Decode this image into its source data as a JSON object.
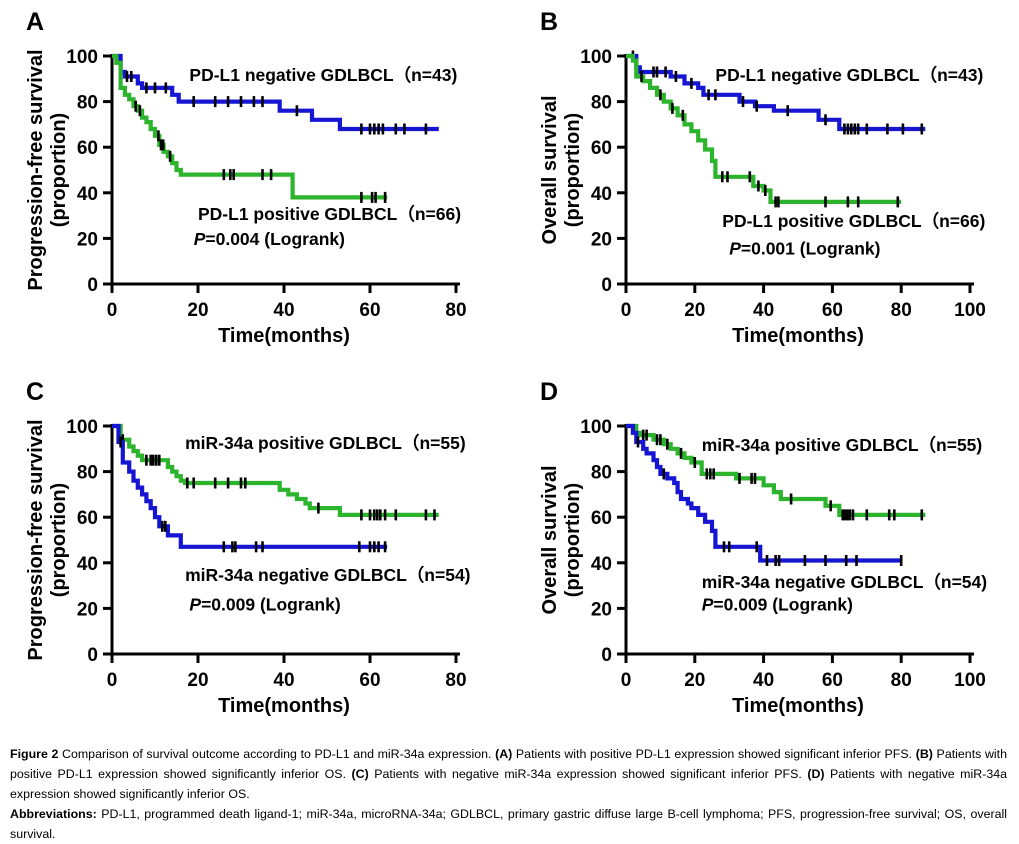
{
  "figure": {
    "panel_letters": [
      "A",
      "B",
      "C",
      "D"
    ],
    "colors": {
      "curve_blue": "#1515d2",
      "curve_green": "#2cb42c",
      "axis": "#000000",
      "background": "#ffffff"
    }
  },
  "chart_data": [
    {
      "panel_label": "A",
      "type": "line",
      "subtype": "kaplan_meier_step",
      "xlabel": "Time(months)",
      "ylabel_line1": "Progression-free survival",
      "ylabel_line2": "(proportion)",
      "xlim": [
        0,
        80
      ],
      "xticks": [
        0,
        20,
        40,
        60,
        80
      ],
      "ylim": [
        0,
        100
      ],
      "yticks": [
        0,
        20,
        40,
        60,
        80,
        100
      ],
      "grid": false,
      "p_label": "P=0.004 (Logrank)",
      "p_pos": {
        "x": 19,
        "y": 17
      },
      "series": [
        {
          "name": "PD-L1 negative GDLBCL（n=43)",
          "color": "#1515d2",
          "label_pos": {
            "x": 18,
            "y": 89
          },
          "points": [
            [
              0,
              100
            ],
            [
              2,
              93
            ],
            [
              3,
              91
            ],
            [
              6,
              88
            ],
            [
              7,
              86
            ],
            [
              14,
              83
            ],
            [
              15.5,
              80
            ],
            [
              39,
              76
            ],
            [
              46.5,
              72
            ],
            [
              53,
              68
            ],
            [
              76,
              68
            ]
          ],
          "censor_x": [
            3.5,
            4.5,
            8,
            10,
            12.5,
            19,
            24,
            27,
            30,
            33,
            35,
            43,
            58,
            60,
            61,
            62,
            63,
            66,
            68,
            73
          ]
        },
        {
          "name": "PD-L1 positive GDLBCL（n=66)",
          "color": "#2cb42c",
          "label_pos": {
            "x": 20,
            "y": 28
          },
          "points": [
            [
              0,
              100
            ],
            [
              1,
              97
            ],
            [
              2,
              86
            ],
            [
              3,
              83
            ],
            [
              4,
              81
            ],
            [
              5,
              78
            ],
            [
              6,
              76
            ],
            [
              7,
              73
            ],
            [
              8,
              71
            ],
            [
              9,
              68
            ],
            [
              10,
              65
            ],
            [
              11,
              61
            ],
            [
              12,
              58
            ],
            [
              13,
              56
            ],
            [
              14,
              53
            ],
            [
              15,
              50
            ],
            [
              16,
              48
            ],
            [
              42,
              38
            ],
            [
              64,
              38
            ]
          ],
          "censor_x": [
            5.5,
            6.5,
            10.8,
            11.4,
            11.9,
            13.5,
            26,
            27.5,
            28.3,
            35,
            37,
            58,
            60.5,
            61.3,
            63.5
          ]
        }
      ]
    },
    {
      "panel_label": "B",
      "type": "line",
      "subtype": "kaplan_meier_step",
      "xlabel": "Time(months)",
      "ylabel_line1": "Overall survival",
      "ylabel_line2": "(proportion)",
      "xlim": [
        0,
        100
      ],
      "xticks": [
        0,
        20,
        40,
        60,
        80,
        100
      ],
      "ylim": [
        0,
        100
      ],
      "yticks": [
        0,
        20,
        40,
        60,
        80,
        100
      ],
      "grid": false,
      "p_label": "P=0.001 (Logrank)",
      "p_pos": {
        "x": 30,
        "y": 13
      },
      "series": [
        {
          "name": "PD-L1 negative GDLBCL（n=43)",
          "color": "#1515d2",
          "label_pos": {
            "x": 26,
            "y": 89
          },
          "points": [
            [
              0,
              100
            ],
            [
              3,
              95
            ],
            [
              4,
              93
            ],
            [
              13,
              91
            ],
            [
              17,
              88
            ],
            [
              21,
              86
            ],
            [
              22.5,
              83
            ],
            [
              33,
              80
            ],
            [
              37.5,
              78
            ],
            [
              43,
              76
            ],
            [
              56,
              72
            ],
            [
              62,
              68
            ],
            [
              87,
              68
            ]
          ],
          "censor_x": [
            2,
            8,
            9,
            11.5,
            14.5,
            19,
            24,
            26,
            34,
            38,
            47,
            58,
            63.5,
            64.5,
            65.5,
            66.5,
            67.5,
            70,
            76,
            80.5,
            86
          ]
        },
        {
          "name": "PD-L1 positive GDLBCL（n=66)",
          "color": "#2cb42c",
          "label_pos": {
            "x": 28,
            "y": 25
          },
          "points": [
            [
              0,
              100
            ],
            [
              2,
              98
            ],
            [
              3,
              91
            ],
            [
              5,
              89
            ],
            [
              7,
              86
            ],
            [
              9,
              83
            ],
            [
              11,
              80
            ],
            [
              13,
              77
            ],
            [
              15,
              74
            ],
            [
              17,
              70
            ],
            [
              19,
              67
            ],
            [
              21,
              63
            ],
            [
              23,
              59
            ],
            [
              25,
              54
            ],
            [
              26,
              47
            ],
            [
              37,
              43
            ],
            [
              40,
              41
            ],
            [
              42,
              36
            ],
            [
              80,
              36
            ]
          ],
          "censor_x": [
            4.5,
            10,
            13.5,
            16.5,
            28,
            29.5,
            36,
            38.5,
            40.5,
            43.5,
            44.3,
            58,
            64.5,
            67.5,
            79
          ]
        }
      ]
    },
    {
      "panel_label": "C",
      "type": "line",
      "subtype": "kaplan_meier_step",
      "xlabel": "Time(months)",
      "ylabel_line1": "Progression-free survival",
      "ylabel_line2": "(proportion)",
      "xlim": [
        0,
        80
      ],
      "xticks": [
        0,
        20,
        40,
        60,
        80
      ],
      "ylim": [
        0,
        100
      ],
      "yticks": [
        0,
        20,
        40,
        60,
        80,
        100
      ],
      "grid": false,
      "p_label": "P=0.009 (Logrank)",
      "p_pos": {
        "x": 18,
        "y": 19
      },
      "series": [
        {
          "name": "miR-34a positive GDLBCL（n=55)",
          "color": "#2cb42c",
          "label_pos": {
            "x": 17,
            "y": 90
          },
          "points": [
            [
              0,
              100
            ],
            [
              2,
              94
            ],
            [
              4,
              91
            ],
            [
              5,
              89
            ],
            [
              6,
              87
            ],
            [
              7,
              85
            ],
            [
              13,
              82
            ],
            [
              14,
              80
            ],
            [
              15,
              78
            ],
            [
              16,
              76
            ],
            [
              17,
              75
            ],
            [
              39,
              72
            ],
            [
              41,
              70
            ],
            [
              43,
              68
            ],
            [
              45,
              66
            ],
            [
              46,
              64
            ],
            [
              53,
              61
            ],
            [
              76,
              61
            ]
          ],
          "censor_x": [
            2.5,
            8,
            9,
            9.6,
            10.3,
            11,
            17.5,
            19,
            24,
            27,
            30,
            31,
            48,
            58,
            60,
            61,
            61.7,
            62.4,
            63.5,
            66,
            73,
            75
          ]
        },
        {
          "name": "miR-34a negative GDLBCL（n=54)",
          "color": "#1515d2",
          "label_pos": {
            "x": 17,
            "y": 32
          },
          "points": [
            [
              0,
              100
            ],
            [
              1.5,
              93
            ],
            [
              2.5,
              84
            ],
            [
              4,
              80
            ],
            [
              5,
              76
            ],
            [
              6,
              73
            ],
            [
              7,
              70
            ],
            [
              8,
              67
            ],
            [
              9,
              64
            ],
            [
              10,
              60
            ],
            [
              11,
              56
            ],
            [
              13,
              52
            ],
            [
              16,
              47
            ],
            [
              64,
              47
            ]
          ],
          "censor_x": [
            2,
            11.7,
            12.4,
            26,
            28,
            28.7,
            33.5,
            35,
            57.5,
            60,
            61,
            62,
            63.5
          ]
        }
      ]
    },
    {
      "panel_label": "D",
      "type": "line",
      "subtype": "kaplan_meier_step",
      "xlabel": "Time(months)",
      "ylabel_line1": "Overall survival",
      "ylabel_line2": "(proportion)",
      "xlim": [
        0,
        100
      ],
      "xticks": [
        0,
        20,
        40,
        60,
        80,
        100
      ],
      "ylim": [
        0,
        100
      ],
      "yticks": [
        0,
        20,
        40,
        60,
        80,
        100
      ],
      "grid": false,
      "p_label": "P=0.009 (Logrank)",
      "p_pos": {
        "x": 22,
        "y": 19
      },
      "series": [
        {
          "name": "miR-34a positive GDLBCL（n=55)",
          "color": "#2cb42c",
          "label_pos": {
            "x": 22,
            "y": 89
          },
          "points": [
            [
              0,
              100
            ],
            [
              3,
              97
            ],
            [
              4,
              96
            ],
            [
              8,
              94
            ],
            [
              11,
              92
            ],
            [
              13,
              90
            ],
            [
              15,
              88
            ],
            [
              17,
              86
            ],
            [
              19,
              84
            ],
            [
              22,
              79
            ],
            [
              32,
              77
            ],
            [
              40,
              74
            ],
            [
              43,
              71
            ],
            [
              45,
              68
            ],
            [
              58,
              65
            ],
            [
              62,
              61
            ],
            [
              87,
              61
            ]
          ],
          "censor_x": [
            5,
            6,
            9,
            10,
            12,
            16,
            20,
            23.5,
            24.5,
            25.5,
            33,
            36.5,
            37.5,
            48,
            59.5,
            63,
            63.7,
            64.4,
            65.1,
            66,
            70,
            76.5,
            78,
            86
          ]
        },
        {
          "name": "miR-34a negative GDLBCL（n=54)",
          "color": "#1515d2",
          "label_pos": {
            "x": 22,
            "y": 29
          },
          "points": [
            [
              0,
              100
            ],
            [
              2,
              97
            ],
            [
              3,
              93
            ],
            [
              5,
              90
            ],
            [
              6,
              88
            ],
            [
              8,
              85
            ],
            [
              9,
              82
            ],
            [
              10,
              79
            ],
            [
              12,
              77
            ],
            [
              14,
              75
            ],
            [
              15,
              71
            ],
            [
              16,
              68
            ],
            [
              18,
              66
            ],
            [
              19,
              64
            ],
            [
              21,
              61
            ],
            [
              23,
              58
            ],
            [
              25,
              54
            ],
            [
              26,
              47
            ],
            [
              39,
              41
            ],
            [
              80,
              41
            ]
          ],
          "censor_x": [
            3.5,
            11,
            28.5,
            30,
            38,
            41,
            43.5,
            44.5,
            52,
            58,
            64,
            67,
            80
          ]
        }
      ]
    }
  ],
  "caption": {
    "figure_segments": [
      {
        "t": "Figure 2",
        "b": 1
      },
      {
        "t": " Comparison of survival outcome according to PD-L1 and miR-34a expression. "
      },
      {
        "t": "(A)",
        "b": 1
      },
      {
        "t": " Patients with positive PD-L1 expression showed significant inferior PFS. "
      },
      {
        "t": "(B)",
        "b": 1
      },
      {
        "t": " Patients with positive PD-L1 expression showed significantly inferior OS. "
      },
      {
        "t": "(C)",
        "b": 1
      },
      {
        "t": " Patients with negative miR-34a expression showed significant inferior PFS. "
      },
      {
        "t": "(D)",
        "b": 1
      },
      {
        "t": " Patients with negative miR-34a expression showed significantly inferior OS."
      }
    ],
    "abbrev_segments": [
      {
        "t": "Abbreviations:",
        "b": 1
      },
      {
        "t": " PD-L1, programmed death ligand-1; miR-34a, microRNA-34a; GDLBCL, primary gastric diffuse large B-cell lymphoma; PFS, progression-free survival; OS, overall survival."
      }
    ]
  }
}
